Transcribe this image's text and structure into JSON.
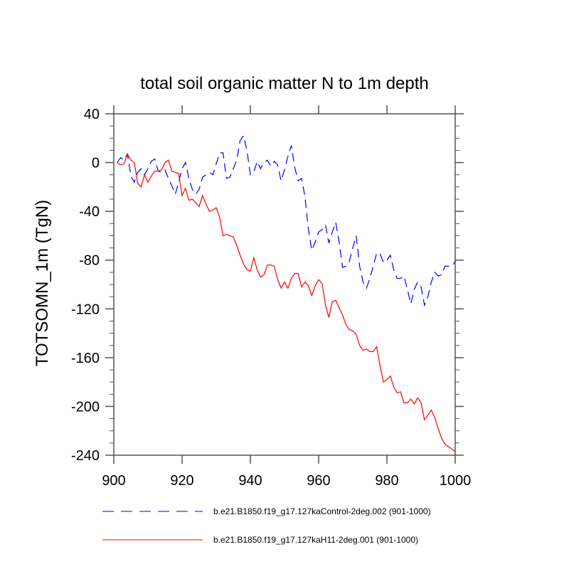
{
  "chart_data": {
    "type": "line",
    "title": "total soil organic matter N to 1m depth",
    "xlabel": "",
    "ylabel": "TOTSOMN_1m  (TgN)",
    "xlim": [
      900,
      1000
    ],
    "ylim": [
      -240,
      40
    ],
    "x_ticks": [
      900,
      920,
      940,
      960,
      980,
      1000
    ],
    "x_tick_labels": [
      "900",
      "920",
      "940",
      "960",
      "980",
      "1000"
    ],
    "y_ticks": [
      40,
      0,
      -40,
      -80,
      -120,
      -160,
      -200,
      -240
    ],
    "y_tick_labels": [
      "40",
      "0",
      "-40",
      "-80",
      "-120",
      "-160",
      "-200",
      "-240"
    ],
    "grid": false,
    "legend_position": "bottom",
    "x": [
      901,
      902,
      903,
      904,
      905,
      906,
      907,
      908,
      909,
      910,
      911,
      912,
      913,
      914,
      915,
      916,
      917,
      918,
      919,
      920,
      921,
      922,
      923,
      924,
      925,
      926,
      927,
      928,
      929,
      930,
      931,
      932,
      933,
      934,
      935,
      936,
      937,
      938,
      939,
      940,
      941,
      942,
      943,
      944,
      945,
      946,
      947,
      948,
      949,
      950,
      951,
      952,
      953,
      954,
      955,
      956,
      957,
      958,
      959,
      960,
      961,
      962,
      963,
      964,
      965,
      966,
      967,
      968,
      969,
      970,
      971,
      972,
      973,
      974,
      975,
      976,
      977,
      978,
      979,
      980,
      981,
      982,
      983,
      984,
      985,
      986,
      987,
      988,
      989,
      990,
      991,
      992,
      993,
      994,
      995,
      996,
      997,
      998,
      999,
      1000
    ],
    "series": [
      {
        "name": "b.e21.B1850.f19_g17.127kaControl-2deg.002 (901-1000)",
        "color": "#0000ff",
        "style": "dashed",
        "values": [
          0,
          4,
          2,
          7,
          -11,
          -16,
          -8,
          -5,
          -10,
          -5,
          1,
          3,
          -7,
          -8,
          -6,
          -13,
          -19,
          -26,
          -16,
          -5,
          0,
          -13,
          -22,
          -26,
          -22,
          -12,
          -10,
          -8,
          -10,
          -1,
          8,
          8,
          -13,
          -12,
          -5,
          2,
          18,
          22,
          10,
          -10,
          -8,
          1,
          -5,
          0,
          2,
          -3,
          1,
          -2,
          -15,
          -6,
          5,
          14,
          -4,
          -15,
          -13,
          -28,
          -55,
          -72,
          -65,
          -57,
          -55,
          -51,
          -66,
          -57,
          -49,
          -65,
          -86,
          -85,
          -81,
          -70,
          -60,
          -85,
          -98,
          -103,
          -95,
          -85,
          -74,
          -75,
          -82,
          -80,
          -76,
          -88,
          -95,
          -95,
          -93,
          -104,
          -116,
          -104,
          -98,
          -102,
          -117,
          -110,
          -98,
          -90,
          -93,
          -92,
          -85,
          -85,
          -85,
          -81
        ]
      },
      {
        "name": "b.e21.B1850.f19_g17.127kaH11-2deg.001 (901-1000)",
        "color": "#ff0000",
        "style": "solid",
        "values": [
          0,
          -2,
          -1,
          7,
          2,
          0,
          -17,
          -20,
          -10,
          -16,
          -11,
          -7,
          -7,
          -6,
          0,
          2,
          -7,
          -8,
          -9,
          -27,
          -21,
          -31,
          -30,
          -33,
          -36,
          -27,
          -34,
          -40,
          -39,
          -37,
          -45,
          -60,
          -59,
          -60,
          -61,
          -68,
          -76,
          -83,
          -88,
          -89,
          -78,
          -88,
          -94,
          -92,
          -84,
          -84,
          -85,
          -96,
          -103,
          -98,
          -103,
          -95,
          -91,
          -91,
          -102,
          -98,
          -101,
          -109,
          -101,
          -96,
          -99,
          -117,
          -127,
          -114,
          -113,
          -119,
          -125,
          -133,
          -137,
          -138,
          -141,
          -150,
          -154,
          -153,
          -155,
          -155,
          -151,
          -167,
          -180,
          -178,
          -175,
          -184,
          -189,
          -188,
          -197,
          -197,
          -194,
          -198,
          -193,
          -197,
          -211,
          -207,
          -203,
          -209,
          -218,
          -226,
          -231,
          -233,
          -235,
          -237
        ]
      }
    ]
  }
}
